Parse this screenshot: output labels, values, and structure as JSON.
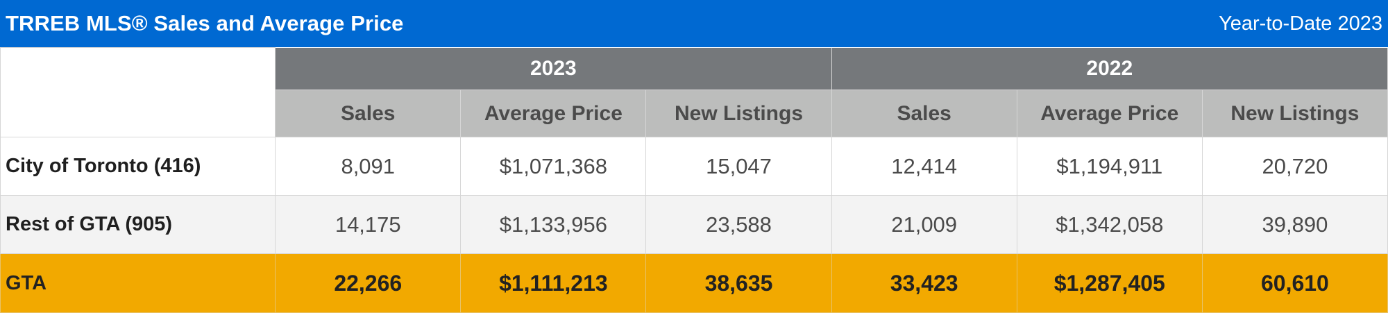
{
  "header": {
    "title": "TRREB MLS® Sales and Average Price",
    "subtitle": "Year-to-Date 2023"
  },
  "years": [
    "2023",
    "2022"
  ],
  "columns": [
    "Sales",
    "Average Price",
    "New Listings",
    "Sales",
    "Average Price",
    "New Listings"
  ],
  "rows": [
    {
      "label": "City of Toronto (416)",
      "values": [
        "8,091",
        "$1,071,368",
        "15,047",
        "12,414",
        "$1,194,911",
        "20,720"
      ]
    },
    {
      "label": "Rest of GTA (905)",
      "values": [
        "14,175",
        "$1,133,956",
        "23,588",
        "21,009",
        "$1,342,058",
        "39,890"
      ]
    },
    {
      "label": "GTA",
      "values": [
        "22,266",
        "$1,111,213",
        "38,635",
        "33,423",
        "$1,287,405",
        "60,610"
      ]
    }
  ],
  "colors": {
    "header_bg": "#0069d2",
    "year_bg": "#75787b",
    "column_header_bg": "#bcbdbc",
    "total_row_bg": "#f2a900"
  }
}
